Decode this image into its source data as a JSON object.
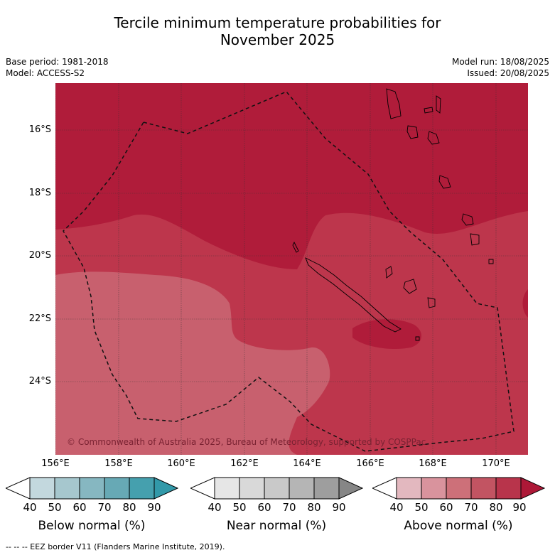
{
  "title": {
    "line1": "Tercile minimum temperature probabilities for",
    "line2": "November 2025"
  },
  "meta": {
    "base_period": "Base period: 1981-2018",
    "model": "Model: ACCESS-S2",
    "model_run": "Model run: 18/08/2025",
    "issued": "Issued: 20/08/2025"
  },
  "map": {
    "lat_labels": [
      "16°S",
      "18°S",
      "20°S",
      "22°S",
      "24°S"
    ],
    "lon_labels": [
      "156°E",
      "158°E",
      "160°E",
      "162°E",
      "164°E",
      "166°E",
      "168°E",
      "170°E"
    ],
    "copyright": "© Commonwealth of Australia 2025, Bureau of Meteorology, supported by COSPPac",
    "colors": {
      "above_80_90": "#b01c3a",
      "above_70_80": "#bd364c",
      "above_60_70": "#c8606e"
    }
  },
  "colorbars": [
    {
      "label": "Below normal (%)",
      "ticks": [
        "40",
        "50",
        "60",
        "70",
        "80",
        "90"
      ],
      "colors": [
        "#ffffff",
        "#c3d8de",
        "#a6c7ce",
        "#86b7c1",
        "#67a9b5",
        "#45a0ae",
        "#3299a9"
      ]
    },
    {
      "label": "Near normal (%)",
      "ticks": [
        "40",
        "50",
        "60",
        "70",
        "80",
        "90"
      ],
      "colors": [
        "#ffffff",
        "#e6e6e6",
        "#d9d9d9",
        "#c9c9c9",
        "#b5b5b5",
        "#9e9e9e",
        "#868686"
      ]
    },
    {
      "label": "Above normal (%)",
      "ticks": [
        "40",
        "50",
        "60",
        "70",
        "80",
        "90"
      ],
      "colors": [
        "#ffffff",
        "#e3b8bf",
        "#d9939d",
        "#cd7079",
        "#c25462",
        "#b8344b",
        "#ad1837"
      ]
    }
  ],
  "footer": "--  --  -- EEZ border V11 (Flanders Marine Institute, 2019)."
}
